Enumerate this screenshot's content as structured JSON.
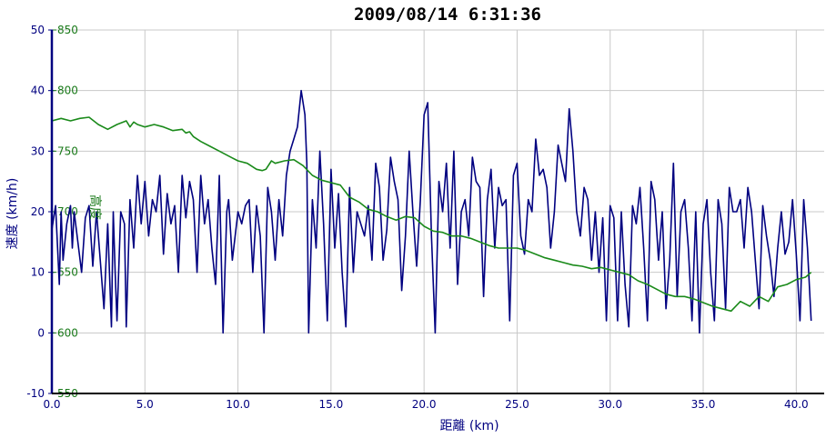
{
  "chart_data": {
    "type": "line",
    "title": "2009/08/14 6:31:36",
    "xlabel": "距離 (km)",
    "ylabel": "速度 (km/h)",
    "y2label": "高度",
    "xlim": [
      0,
      41.5
    ],
    "ylim": [
      -10,
      50
    ],
    "y2lim": [
      550,
      850
    ],
    "x_ticks": [
      "0.0",
      "5.0",
      "10.0",
      "15.0",
      "20.0",
      "25.0",
      "30.0",
      "35.0",
      "40.0"
    ],
    "y_ticks": [
      "-10",
      "0",
      "10",
      "20",
      "30",
      "40",
      "50"
    ],
    "y2_ticks": [
      "550",
      "600",
      "650",
      "700",
      "750",
      "800",
      "850"
    ],
    "grid": true,
    "colors": {
      "speed": "#000080",
      "altitude": "#1a8a1a",
      "axis": "#000000",
      "grid": "#c8c8c8"
    },
    "series": [
      {
        "name": "速度",
        "axis": "left",
        "x": [
          0.0,
          0.2,
          0.4,
          0.5,
          0.6,
          0.8,
          1.0,
          1.1,
          1.2,
          1.4,
          1.6,
          1.8,
          2.0,
          2.2,
          2.4,
          2.6,
          2.8,
          3.0,
          3.2,
          3.3,
          3.4,
          3.5,
          3.7,
          3.9,
          4.0,
          4.2,
          4.4,
          4.6,
          4.8,
          5.0,
          5.2,
          5.4,
          5.6,
          5.8,
          6.0,
          6.2,
          6.4,
          6.6,
          6.8,
          7.0,
          7.2,
          7.4,
          7.6,
          7.8,
          8.0,
          8.2,
          8.4,
          8.6,
          8.8,
          9.0,
          9.2,
          9.4,
          9.5,
          9.7,
          10.0,
          10.2,
          10.4,
          10.6,
          10.8,
          11.0,
          11.2,
          11.4,
          11.6,
          11.8,
          12.0,
          12.2,
          12.4,
          12.6,
          12.8,
          13.0,
          13.2,
          13.4,
          13.6,
          13.7,
          13.8,
          14.0,
          14.2,
          14.4,
          14.6,
          14.8,
          15.0,
          15.2,
          15.4,
          15.6,
          15.8,
          16.0,
          16.2,
          16.4,
          16.6,
          16.8,
          17.0,
          17.2,
          17.4,
          17.6,
          17.8,
          18.0,
          18.2,
          18.4,
          18.6,
          18.8,
          19.0,
          19.2,
          19.4,
          19.6,
          19.8,
          20.0,
          20.2,
          20.4,
          20.6,
          20.8,
          21.0,
          21.2,
          21.4,
          21.6,
          21.8,
          22.0,
          22.2,
          22.4,
          22.6,
          22.8,
          23.0,
          23.2,
          23.4,
          23.6,
          23.8,
          24.0,
          24.2,
          24.4,
          24.6,
          24.8,
          25.0,
          25.2,
          25.4,
          25.6,
          25.8,
          26.0,
          26.2,
          26.4,
          26.6,
          26.8,
          27.0,
          27.2,
          27.4,
          27.6,
          27.8,
          28.0,
          28.2,
          28.4,
          28.6,
          28.8,
          29.0,
          29.2,
          29.4,
          29.6,
          29.8,
          30.0,
          30.2,
          30.4,
          30.6,
          30.8,
          31.0,
          31.2,
          31.4,
          31.6,
          31.8,
          32.0,
          32.2,
          32.4,
          32.6,
          32.8,
          33.0,
          33.2,
          33.4,
          33.6,
          33.8,
          34.0,
          34.2,
          34.4,
          34.6,
          34.8,
          35.0,
          35.2,
          35.4,
          35.6,
          35.8,
          36.0,
          36.2,
          36.4,
          36.6,
          36.8,
          37.0,
          37.2,
          37.4,
          37.6,
          37.8,
          38.0,
          38.2,
          38.4,
          38.6,
          38.8,
          39.0,
          39.2,
          39.4,
          39.6,
          39.8,
          40.0,
          40.2,
          40.4,
          40.6,
          40.8
        ],
        "values": [
          17,
          21,
          8,
          20,
          12,
          18,
          21,
          14,
          20,
          15,
          10,
          19,
          21,
          11,
          20,
          12,
          4,
          18,
          1,
          20,
          10,
          2,
          20,
          18,
          1,
          22,
          14,
          26,
          18,
          25,
          16,
          22,
          20,
          26,
          13,
          23,
          18,
          21,
          10,
          26,
          19,
          25,
          22,
          10,
          26,
          18,
          22,
          14,
          8,
          26,
          0,
          20,
          22,
          12,
          20,
          18,
          21,
          22,
          10,
          21,
          16,
          0,
          24,
          20,
          12,
          22,
          16,
          26,
          30,
          32,
          34,
          40,
          36,
          28,
          0,
          22,
          14,
          30,
          18,
          2,
          27,
          14,
          23,
          10,
          1,
          24,
          10,
          20,
          18,
          16,
          21,
          12,
          28,
          24,
          12,
          17,
          29,
          25,
          22,
          7,
          16,
          30,
          20,
          11,
          22,
          36,
          38,
          16,
          0,
          25,
          20,
          28,
          14,
          30,
          8,
          20,
          22,
          16,
          29,
          25,
          24,
          6,
          22,
          27,
          14,
          24,
          21,
          22,
          2,
          26,
          28,
          16,
          13,
          22,
          20,
          32,
          26,
          27,
          24,
          14,
          20,
          31,
          28,
          25,
          37,
          30,
          20,
          16,
          24,
          22,
          12,
          20,
          10,
          19,
          2,
          21,
          19,
          2,
          20,
          8,
          1,
          21,
          18,
          24,
          14,
          2,
          25,
          22,
          12,
          20,
          4,
          12,
          28,
          6,
          20,
          22,
          14,
          2,
          20,
          0,
          18,
          22,
          10,
          2,
          22,
          18,
          4,
          24,
          20,
          20,
          22,
          14,
          24,
          20,
          12,
          4,
          21,
          16,
          12,
          6,
          14,
          20,
          13,
          15,
          22,
          13,
          2,
          22,
          14,
          2
        ],
        "stroke": "#000080"
      },
      {
        "name": "高度",
        "axis": "right",
        "x": [
          0.0,
          0.5,
          1.0,
          1.5,
          2.0,
          2.5,
          3.0,
          3.5,
          4.0,
          4.2,
          4.4,
          4.6,
          5.0,
          5.5,
          6.0,
          6.5,
          7.0,
          7.2,
          7.4,
          7.6,
          8.0,
          8.5,
          9.0,
          9.5,
          10.0,
          10.5,
          11.0,
          11.3,
          11.5,
          11.8,
          12.0,
          12.5,
          13.0,
          13.5,
          14.0,
          14.5,
          15.0,
          15.5,
          16.0,
          16.5,
          17.0,
          17.5,
          18.0,
          18.5,
          19.0,
          19.5,
          20.0,
          20.5,
          21.0,
          21.5,
          22.0,
          22.5,
          23.0,
          23.5,
          24.0,
          24.5,
          25.0,
          25.5,
          26.0,
          26.5,
          27.0,
          27.5,
          28.0,
          28.5,
          29.0,
          29.5,
          30.0,
          30.5,
          31.0,
          31.5,
          32.0,
          32.5,
          33.0,
          33.5,
          34.0,
          34.5,
          35.0,
          35.5,
          36.0,
          36.5,
          37.0,
          37.5,
          38.0,
          38.5,
          39.0,
          39.5,
          40.0,
          40.5,
          40.8
        ],
        "values": [
          775,
          777,
          775,
          777,
          778,
          772,
          768,
          772,
          775,
          770,
          774,
          772,
          770,
          772,
          770,
          767,
          768,
          765,
          766,
          762,
          758,
          754,
          750,
          746,
          742,
          740,
          735,
          734,
          735,
          742,
          740,
          742,
          743,
          738,
          730,
          726,
          724,
          722,
          712,
          708,
          702,
          700,
          696,
          693,
          696,
          695,
          688,
          684,
          683,
          680,
          680,
          678,
          675,
          672,
          670,
          670,
          670,
          668,
          665,
          662,
          660,
          658,
          656,
          655,
          653,
          654,
          652,
          650,
          648,
          643,
          640,
          636,
          632,
          630,
          630,
          628,
          625,
          622,
          620,
          618,
          626,
          622,
          630,
          626,
          638,
          640,
          644,
          646,
          650
        ],
        "stroke": "#1a8a1a"
      }
    ]
  }
}
